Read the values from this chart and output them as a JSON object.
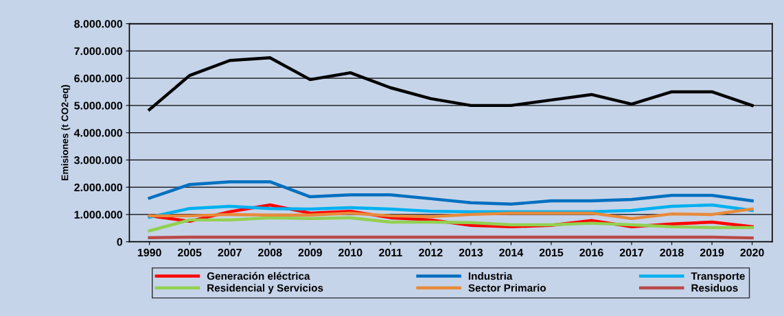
{
  "chart_data": {
    "type": "line",
    "ylabel": "Emisiones (t CO2-eq)",
    "categories": [
      "1990",
      "2005",
      "2007",
      "2008",
      "2009",
      "2010",
      "2011",
      "2012",
      "2013",
      "2014",
      "2015",
      "2016",
      "2017",
      "2018",
      "2019",
      "2020"
    ],
    "series": [
      {
        "color": "#000000",
        "values": [
          4850000,
          6100000,
          6650000,
          6750000,
          5950000,
          6200000,
          5650000,
          5250000,
          5000000,
          5000000,
          5200000,
          5400000,
          5050000,
          5500000,
          5500000,
          5000000
        ]
      },
      {
        "name": "Generación eléctrica",
        "color": "#ff0000",
        "values": [
          950000,
          750000,
          1100000,
          1350000,
          1050000,
          1120000,
          880000,
          800000,
          600000,
          550000,
          600000,
          780000,
          550000,
          650000,
          720000,
          550000
        ]
      },
      {
        "name": "Industria",
        "color": "#0070c0",
        "values": [
          1600000,
          2100000,
          2200000,
          2200000,
          1650000,
          1720000,
          1720000,
          1580000,
          1430000,
          1380000,
          1500000,
          1500000,
          1550000,
          1700000,
          1700000,
          1500000
        ]
      },
      {
        "name": "Transporte",
        "color": "#00b0f0",
        "values": [
          900000,
          1220000,
          1300000,
          1220000,
          1200000,
          1250000,
          1200000,
          1120000,
          1100000,
          1100000,
          1100000,
          1100000,
          1150000,
          1300000,
          1350000,
          1150000
        ]
      },
      {
        "name": "Residencial y Servicios",
        "color": "#92d050",
        "values": [
          400000,
          800000,
          800000,
          880000,
          850000,
          880000,
          720000,
          720000,
          700000,
          620000,
          620000,
          680000,
          620000,
          550000,
          520000,
          520000
        ]
      },
      {
        "name": "Sector Primario",
        "color": "#e88a3a",
        "values": [
          950000,
          950000,
          1000000,
          980000,
          980000,
          1050000,
          950000,
          920000,
          1000000,
          1050000,
          1050000,
          1050000,
          850000,
          1020000,
          1000000,
          1200000
        ]
      },
      {
        "name": "Residuos",
        "color": "#b94a48",
        "values": [
          150000,
          170000,
          170000,
          170000,
          170000,
          170000,
          170000,
          170000,
          170000,
          170000,
          170000,
          170000,
          170000,
          170000,
          170000,
          140000
        ]
      }
    ],
    "ylim": [
      0,
      8000000
    ],
    "yticks": [
      {
        "value": 0,
        "label": "0"
      },
      {
        "value": 1000000,
        "label": "1.000.000"
      },
      {
        "value": 2000000,
        "label": "2.000.000"
      },
      {
        "value": 3000000,
        "label": "3.000.000"
      },
      {
        "value": 4000000,
        "label": "4.000.000"
      },
      {
        "value": 5000000,
        "label": "5.000.000"
      },
      {
        "value": 6000000,
        "label": "6.000.000"
      },
      {
        "value": 7000000,
        "label": "7.000.000"
      },
      {
        "value": 8000000,
        "label": "8.000.000"
      }
    ],
    "grid": "y",
    "legend": "bottom",
    "marker": "none",
    "line_style": "solid"
  }
}
